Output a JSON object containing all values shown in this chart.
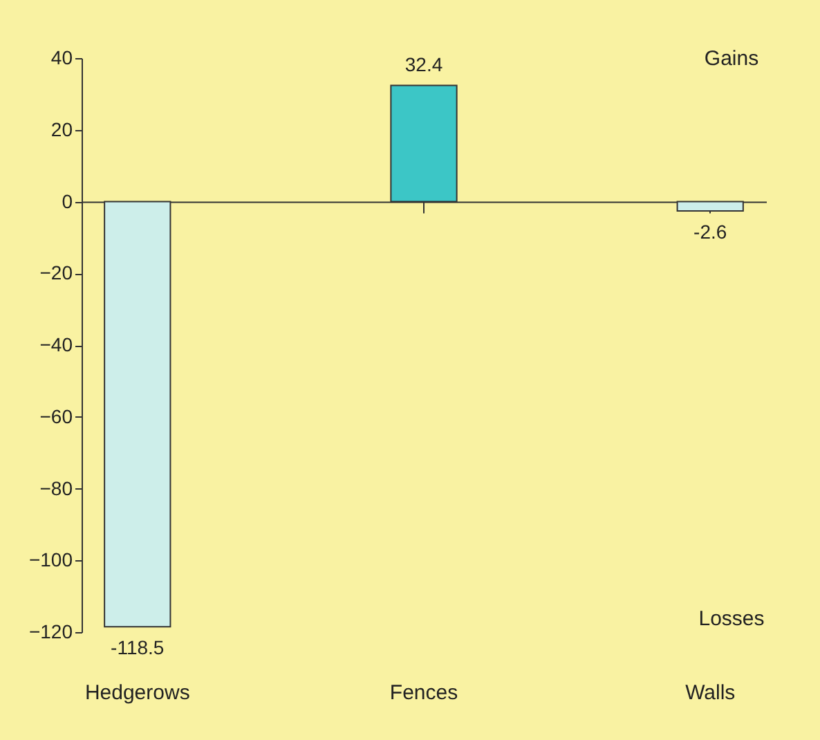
{
  "chart_data": {
    "type": "bar",
    "categories": [
      "Hedgerows",
      "Fences",
      "Walls"
    ],
    "values": [
      -118.5,
      32.4,
      -2.6
    ],
    "colors": [
      "#cdeeea",
      "#3cc6c6",
      "#cdeeea"
    ],
    "ylim": [
      -120,
      40
    ],
    "yticks": [
      -120,
      -100,
      -80,
      -60,
      -40,
      -20,
      0,
      20,
      40
    ],
    "data_labels": true,
    "annotations": [
      "Gains",
      "Losses"
    ]
  }
}
